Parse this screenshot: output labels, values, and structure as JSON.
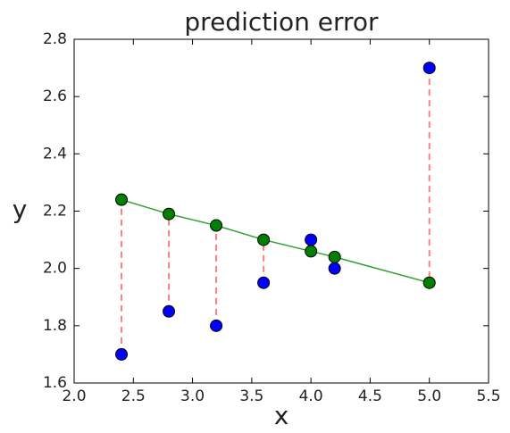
{
  "chart_data": {
    "type": "scatter",
    "title": "prediction error",
    "x_label": "x",
    "y_label": "y",
    "x": [
      2.4,
      2.8,
      3.2,
      3.6,
      4.0,
      4.2,
      5.0
    ],
    "series": [
      {
        "color": "#0000ff",
        "values": [
          1.7,
          1.85,
          1.8,
          1.95,
          2.1,
          2.0,
          2.7
        ]
      },
      {
        "color": "#007f00",
        "values": [
          2.24,
          2.19,
          2.15,
          2.1,
          2.06,
          2.04,
          1.95
        ]
      }
    ],
    "fit_color": "#2ca02c",
    "error_color": "#ff7f7f",
    "xlim": [
      2.0,
      5.5
    ],
    "xticks": [
      {
        "value": 2,
        "label": "2.0"
      },
      2.5,
      {
        "value": 3,
        "label": "3.0"
      },
      3.5,
      {
        "value": 4,
        "label": "4.0"
      },
      4.5,
      {
        "value": 5,
        "label": "5.0"
      },
      5.5
    ],
    "ylim": [
      1.6,
      2.8
    ],
    "yticks": [
      1.6,
      1.8,
      {
        "value": 2,
        "label": "2.0"
      },
      2.2,
      2.4,
      2.6,
      2.8
    ]
  }
}
